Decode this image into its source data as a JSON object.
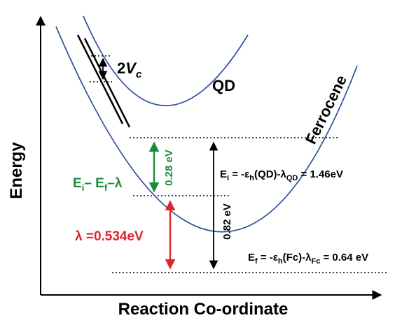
{
  "axes": {
    "y_label": "Energy",
    "x_label": "Reaction Co-ordinate"
  },
  "curves": {
    "qd_label": "QD",
    "fc_label": "Ferrocene"
  },
  "coupling": {
    "prefix": "2",
    "symbol": "V",
    "subscript": "c"
  },
  "gap_qd": {
    "value": "0.28 eV",
    "label_a": "E",
    "label_a_sub": "i",
    "label_mid": "– E",
    "label_b_sub": "f",
    "label_end": "–λ"
  },
  "lambda": {
    "text": "λ =0.534eV"
  },
  "gap_total": {
    "value": "0.82 eV"
  },
  "ei_eq": {
    "p1": "E",
    "s1": "i",
    "p2": " = -ε",
    "s2": "h",
    "p3": "(QD)-λ",
    "s3": "QD",
    "p4": " = 1.46eV"
  },
  "ef_eq": {
    "p1": "E",
    "s1": "f",
    "p2": " = -ε",
    "s2": "h",
    "p3": "(Fc)-λ",
    "s3": "Fc",
    "p4": " = 0.64 eV"
  },
  "colors": {
    "curve": "#2f4fa0",
    "green": "#1d8a3a",
    "red": "#e0242a",
    "axis": "#000000"
  }
}
